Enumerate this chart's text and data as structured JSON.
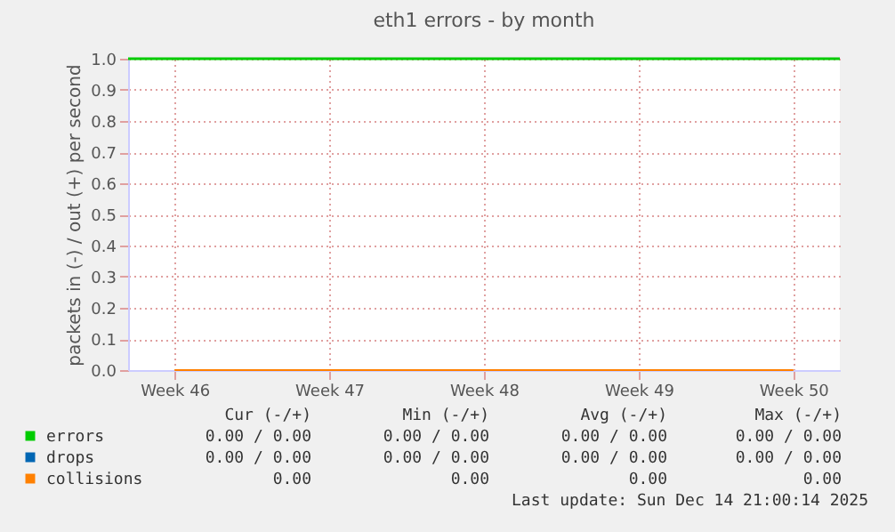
{
  "chart_data": {
    "type": "line",
    "title": "eth1 errors - by month",
    "ylabel": "packets in (-) / out (+) per second",
    "categories": [
      "Week 46",
      "Week 47",
      "Week 48",
      "Week 49",
      "Week 50"
    ],
    "series": [
      {
        "name": "errors",
        "color": "#00cc00",
        "values": [
          null,
          null,
          null,
          null,
          null
        ]
      },
      {
        "name": "drops",
        "color": "#0066b3",
        "values": [
          null,
          null,
          null,
          null,
          null
        ]
      },
      {
        "name": "collisions",
        "color": "#ff8000",
        "values": [
          0,
          0,
          0,
          0,
          0
        ]
      }
    ],
    "ylim": [
      0,
      1
    ],
    "yticks": [
      {
        "value": 0,
        "label": "0.0"
      },
      {
        "value": 0.1,
        "label": "0.1"
      },
      {
        "value": 0.2,
        "label": "0.2"
      },
      {
        "value": 0.3,
        "label": "0.3"
      },
      {
        "value": 0.4,
        "label": "0.4"
      },
      {
        "value": 0.5,
        "label": "0.5"
      },
      {
        "value": 0.6,
        "label": "0.6"
      },
      {
        "value": 0.7,
        "label": "0.7"
      },
      {
        "value": 0.8,
        "label": "0.8"
      },
      {
        "value": 0.9,
        "label": "0.9"
      },
      {
        "value": 1,
        "label": "1.0"
      }
    ],
    "ref_lines": [
      {
        "axis": "y",
        "value": 1,
        "color": "#00cc00"
      }
    ],
    "grid": true,
    "legend": "bottom",
    "marker": "none",
    "line_style": "solid",
    "annotations": [
      "Cur (-/+)",
      "Min (-/+)",
      "Avg (-/+)",
      "Max (-/+)",
      "0.00 /  0.00",
      "0.00 /  0.00",
      "0.00 /  0.00",
      "0.00 /  0.00",
      "0.00 /  0.00",
      "0.00 /  0.00",
      "0.00 /  0.00",
      "0.00 /  0.00",
      "0.00",
      "0.00",
      "0.00",
      "0.00",
      "Last update: Sun Dec 14 21:00:14 2025"
    ]
  }
}
